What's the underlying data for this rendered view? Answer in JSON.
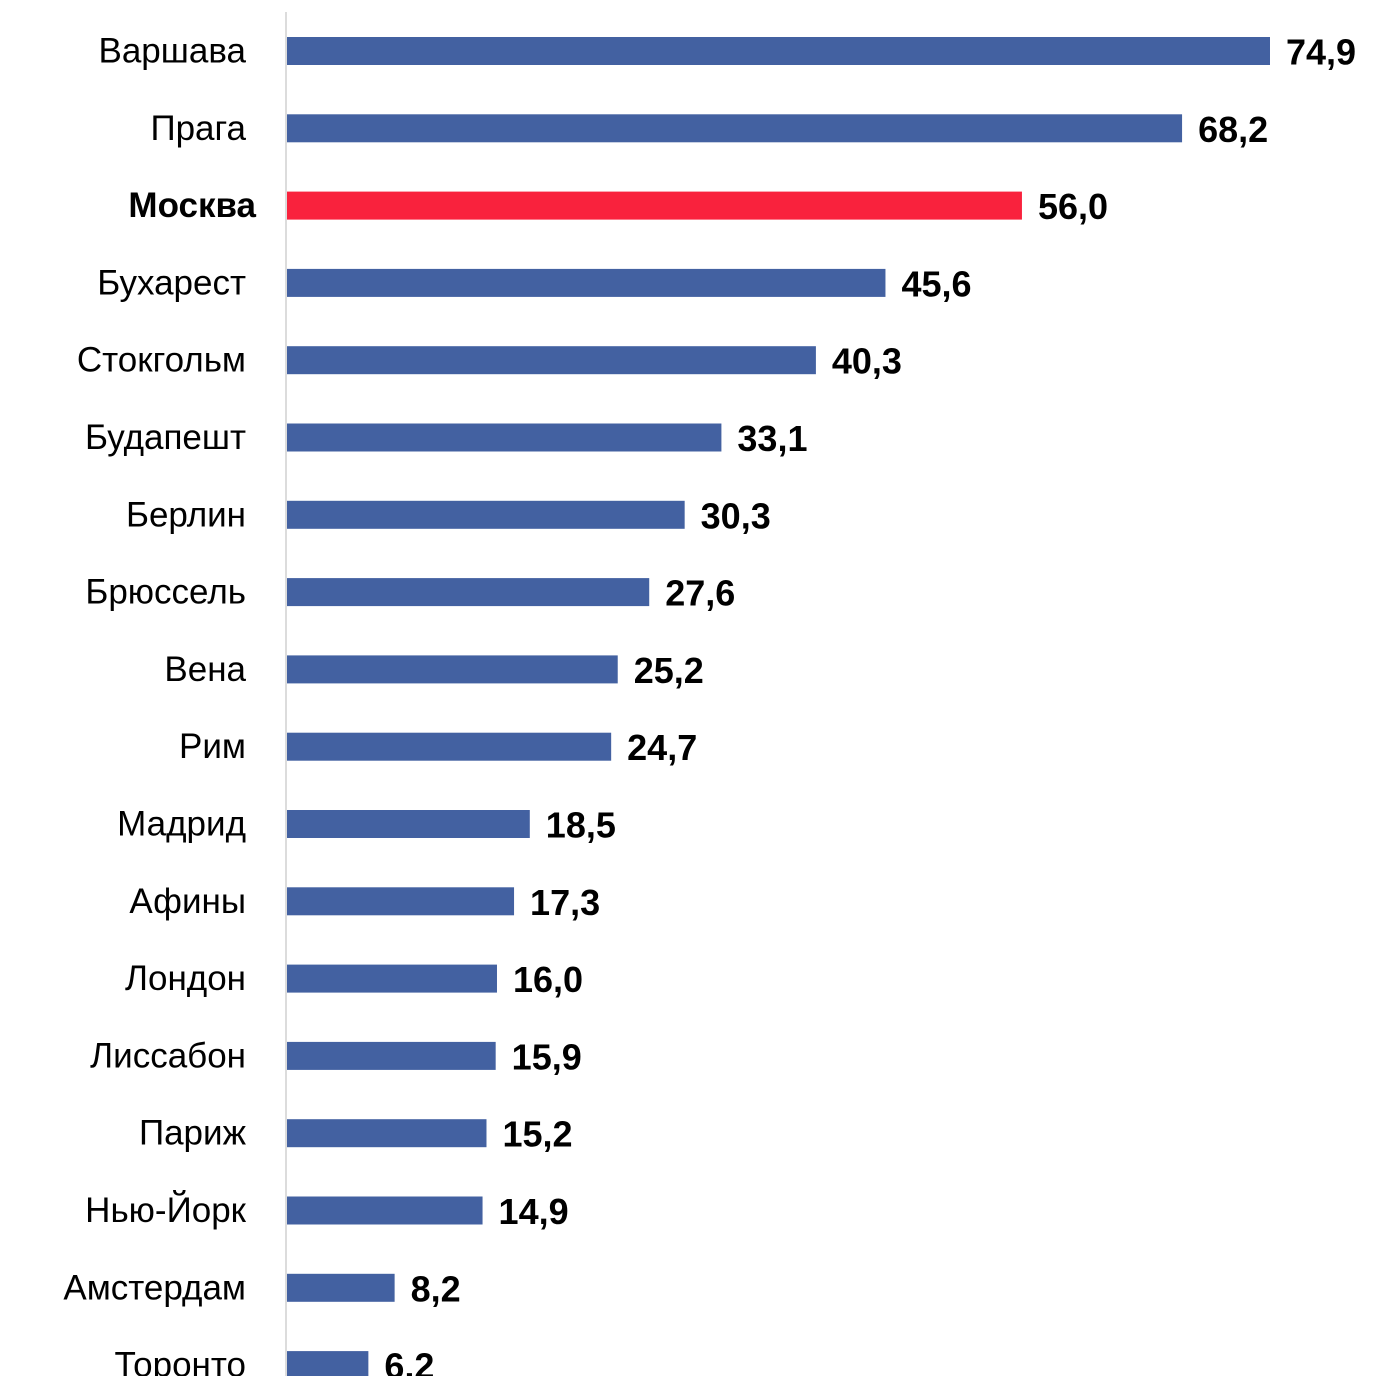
{
  "chart_data": {
    "type": "bar",
    "orientation": "horizontal",
    "categories": [
      "Варшава",
      "Прага",
      "Москва",
      "Бухарест",
      "Стокгольм",
      "Будапешт",
      "Берлин",
      "Брюссель",
      "Вена",
      "Рим",
      "Мадрид",
      "Афины",
      "Лондон",
      "Лиссабон",
      "Париж",
      "Нью-Йорк",
      "Амстердам",
      "Торонто"
    ],
    "values": [
      74.9,
      68.2,
      56.0,
      45.6,
      40.3,
      33.1,
      30.3,
      27.6,
      25.2,
      24.7,
      18.5,
      17.3,
      16.0,
      15.9,
      15.2,
      14.9,
      8.2,
      6.2
    ],
    "value_labels": [
      "74,9",
      "68,2",
      "56,0",
      "45,6",
      "40,3",
      "33,1",
      "30,3",
      "27,6",
      "25,2",
      "24,7",
      "18,5",
      "17,3",
      "16,0",
      "15,9",
      "15,2",
      "14,9",
      "8,2",
      "6,2"
    ],
    "highlight": "Москва",
    "xlim": [
      0,
      74.9
    ],
    "grid": false,
    "colors": {
      "bar": "#4361a1",
      "highlight": "#f9223d",
      "axis": "#d0d0d0"
    }
  }
}
